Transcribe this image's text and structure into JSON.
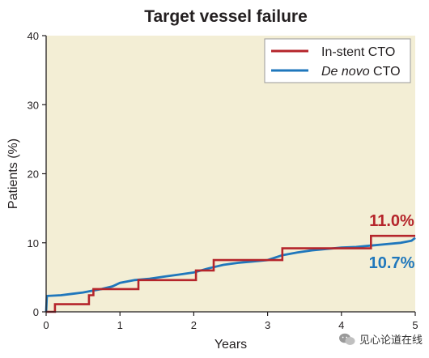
{
  "chart_data": {
    "type": "line",
    "title": "Target vessel failure",
    "xlabel": "Years",
    "ylabel": "Patients (%)",
    "xlim": [
      0,
      5
    ],
    "ylim": [
      0,
      40
    ],
    "x_ticks": [
      "0",
      "1",
      "2",
      "3",
      "4",
      "5"
    ],
    "y_ticks": [
      "0",
      "10",
      "20",
      "30",
      "40"
    ],
    "background": "#f3eed5",
    "legend_position": "top-right",
    "series": [
      {
        "name": "In-stent CTO",
        "color": "#b5252b",
        "step": true,
        "x": [
          0,
          0.12,
          0.12,
          0.58,
          0.58,
          0.64,
          0.64,
          1.25,
          1.25,
          2.03,
          2.03,
          2.27,
          2.27,
          3.2,
          3.2,
          4.4,
          4.4,
          5
        ],
        "y": [
          0,
          0,
          1.1,
          1.1,
          2.4,
          2.4,
          3.3,
          3.3,
          4.6,
          4.6,
          6.0,
          6.0,
          7.5,
          7.5,
          9.2,
          9.2,
          11.0,
          11.0
        ],
        "end_label": "11.0%",
        "end_value": 11.0
      },
      {
        "name": "De novo CTO",
        "color": "#1f77bc",
        "step": false,
        "x": [
          0,
          0.01,
          0.2,
          0.35,
          0.5,
          0.6,
          0.75,
          0.9,
          1.0,
          1.2,
          1.4,
          1.6,
          1.8,
          2.0,
          2.2,
          2.4,
          2.6,
          2.8,
          3.0,
          3.2,
          3.4,
          3.6,
          3.8,
          4.0,
          4.2,
          4.4,
          4.6,
          4.8,
          4.95,
          5.0
        ],
        "y": [
          0,
          2.3,
          2.4,
          2.6,
          2.8,
          3.0,
          3.3,
          3.7,
          4.2,
          4.6,
          4.8,
          5.1,
          5.4,
          5.7,
          6.3,
          6.8,
          7.1,
          7.3,
          7.5,
          8.2,
          8.6,
          8.9,
          9.1,
          9.3,
          9.4,
          9.6,
          9.8,
          10.0,
          10.3,
          10.7
        ],
        "end_label": "10.7%",
        "end_value": 10.7
      }
    ]
  },
  "legend": {
    "items": [
      {
        "label": "In-stent CTO",
        "color": "#b5252b"
      },
      {
        "label_italic": "De novo",
        "label_rest": " CTO",
        "color": "#1f77bc"
      }
    ]
  },
  "watermark": {
    "text": "见心论道在线",
    "icon": "wechat-icon"
  }
}
